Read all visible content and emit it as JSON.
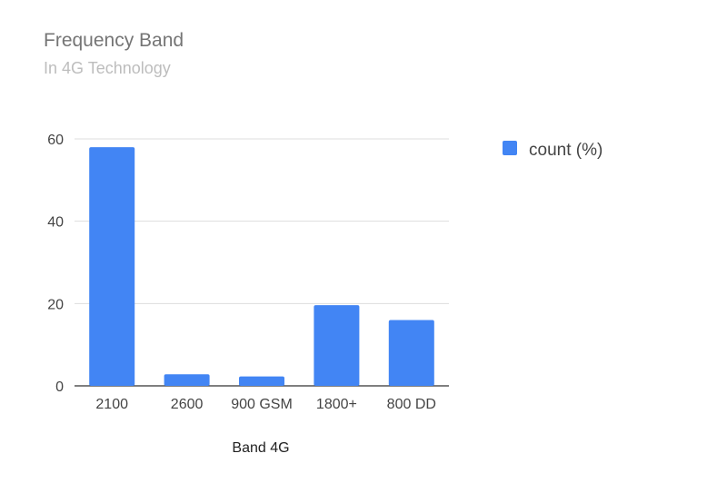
{
  "chart_data": {
    "type": "bar",
    "title": "Frequency Band",
    "subtitle": "In 4G Technology",
    "categories": [
      "2100",
      "2600",
      "900 GSM",
      "1800+",
      "800 DD"
    ],
    "series": [
      {
        "name": "count (%)",
        "values": [
          58,
          2.8,
          2.3,
          19.6,
          16
        ]
      }
    ],
    "xlabel": "Band 4G",
    "ylabel": "",
    "ylim": [
      0,
      60
    ],
    "yticks": [
      0,
      20,
      40,
      60
    ],
    "grid": true,
    "legend_position": "right",
    "colors": {
      "bar": "#4285f4",
      "grid": "#dddddd",
      "baseline": "#333333"
    }
  }
}
